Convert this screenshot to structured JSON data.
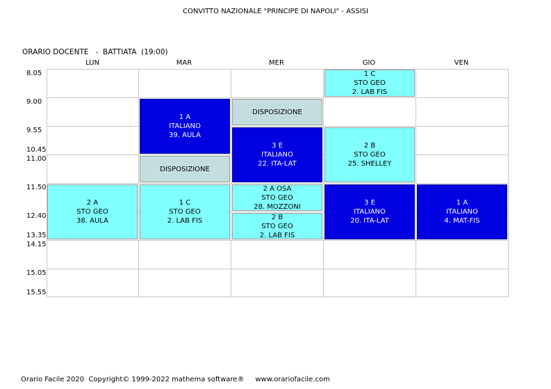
{
  "header": {
    "school": "CONVITTO NAZIONALE \"PRINCIPE DI NAPOLI\" - ASSISI",
    "schedule_title": "ORARIO DOCENTE   -  BATTIATA  (19:00)"
  },
  "days": [
    "LUN",
    "MAR",
    "MER",
    "GIO",
    "VEN"
  ],
  "times": [
    "8.05",
    "9.00",
    "9.55",
    "10.45",
    "11.00",
    "11.50",
    "12.40",
    "13.35",
    "14.15",
    "15.05",
    "15.55"
  ],
  "lessons": [
    {
      "class": "1 C",
      "subject": "STO GEO",
      "room": "2. LAB FIS"
    },
    {
      "class": "1 A",
      "subject": "ITALIANO",
      "room": "39. AULA"
    },
    {
      "label": "DISPOSIZIONE"
    },
    {
      "label": "DISPOSIZIONE"
    },
    {
      "class": "3 E",
      "subject": "ITALIANO",
      "room": "22. ITA-LAT"
    },
    {
      "class": "2 B",
      "subject": "STO GEO",
      "room": "25. SHELLEY"
    },
    {
      "class": "2 A",
      "subject": "STO GEO",
      "room": "38. AULA"
    },
    {
      "class": "1 C",
      "subject": "STO GEO",
      "room": "2. LAB FIS"
    },
    {
      "class": "2 A OSA",
      "subject": "STO GEO",
      "room": "28. MOZZONI"
    },
    {
      "class": "2 B",
      "subject": "STO GEO",
      "room": "2. LAB FIS"
    },
    {
      "class": "3 E",
      "subject": "ITALIANO",
      "room": "20. ITA-LAT"
    },
    {
      "class": "1 A",
      "subject": "ITALIANO",
      "room": "4. MAT-FIS"
    }
  ],
  "colors": {
    "cyan": "#80ffff",
    "blue": "#0000e0",
    "gray": "#c4dede"
  },
  "footer": "Orario Facile 2020  Copyright© 1999-2022 mathema software®     www.orariofacile.com"
}
